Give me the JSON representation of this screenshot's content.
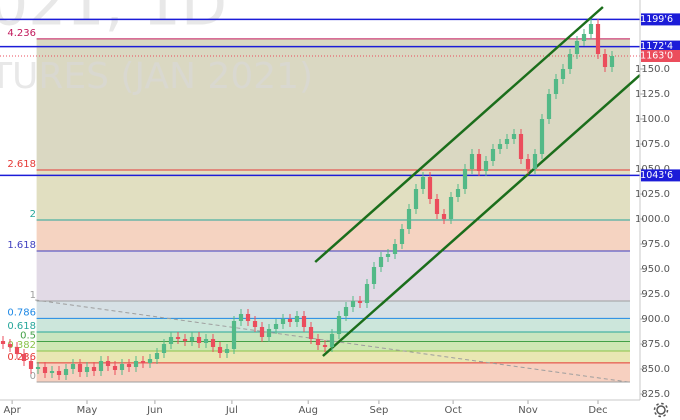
{
  "chart_data": {
    "type": "candlestick",
    "watermark": [
      "021, 1D",
      "TURES (JAN 2021)"
    ],
    "open": [
      878,
      875,
      872,
      865,
      858,
      850,
      852,
      846,
      848,
      844,
      850,
      855,
      847,
      852,
      848,
      858,
      853,
      849,
      855,
      852,
      858,
      856,
      860,
      866,
      875,
      882,
      880,
      878,
      882,
      876,
      880,
      872,
      866,
      870,
      898,
      905,
      898,
      892,
      882,
      890,
      895,
      900,
      897,
      903,
      892,
      880,
      874,
      872,
      885,
      903,
      912,
      918,
      916,
      935,
      952,
      962,
      965,
      975,
      990,
      1010,
      1030,
      1042,
      1020,
      1005,
      1000,
      1022,
      1030,
      1050,
      1065,
      1048,
      1058,
      1070,
      1075,
      1080,
      1085,
      1060,
      1050,
      1065,
      1100,
      1125,
      1140,
      1150,
      1165,
      1178,
      1185,
      1195,
      1165,
      1152
    ],
    "high": [
      883,
      880,
      877,
      870,
      863,
      857,
      857,
      853,
      853,
      855,
      860,
      860,
      857,
      857,
      863,
      863,
      858,
      860,
      860,
      863,
      863,
      865,
      871,
      880,
      887,
      887,
      885,
      887,
      887,
      885,
      885,
      877,
      875,
      903,
      910,
      910,
      903,
      897,
      895,
      900,
      905,
      905,
      908,
      908,
      897,
      885,
      879,
      890,
      908,
      917,
      923,
      923,
      940,
      957,
      967,
      970,
      980,
      995,
      1015,
      1035,
      1047,
      1047,
      1025,
      1010,
      1027,
      1035,
      1055,
      1070,
      1070,
      1063,
      1075,
      1080,
      1085,
      1090,
      1090,
      1065,
      1070,
      1105,
      1130,
      1145,
      1155,
      1170,
      1183,
      1190,
      1200,
      1200,
      1170,
      1168
    ],
    "low": [
      870,
      867,
      860,
      853,
      845,
      845,
      841,
      841,
      839,
      839,
      845,
      842,
      842,
      843,
      843,
      848,
      844,
      844,
      847,
      847,
      851,
      851,
      855,
      861,
      870,
      875,
      873,
      873,
      871,
      871,
      867,
      861,
      861,
      865,
      893,
      893,
      887,
      877,
      877,
      885,
      890,
      892,
      892,
      887,
      875,
      869,
      867,
      867,
      880,
      898,
      907,
      911,
      911,
      930,
      947,
      957,
      960,
      970,
      985,
      1005,
      1025,
      1015,
      1000,
      995,
      995,
      1017,
      1025,
      1045,
      1043,
      1043,
      1053,
      1065,
      1070,
      1075,
      1055,
      1045,
      1045,
      1060,
      1095,
      1120,
      1135,
      1145,
      1160,
      1173,
      1180,
      1160,
      1147,
      1147
    ],
    "close": [
      875,
      872,
      865,
      858,
      850,
      852,
      846,
      848,
      844,
      850,
      855,
      847,
      852,
      848,
      858,
      853,
      849,
      855,
      852,
      858,
      856,
      860,
      866,
      875,
      882,
      880,
      878,
      882,
      876,
      880,
      872,
      866,
      870,
      898,
      905,
      898,
      892,
      882,
      890,
      895,
      900,
      897,
      903,
      892,
      880,
      874,
      872,
      885,
      903,
      912,
      918,
      916,
      935,
      952,
      962,
      965,
      975,
      990,
      1010,
      1030,
      1042,
      1020,
      1005,
      1000,
      1022,
      1030,
      1050,
      1065,
      1048,
      1058,
      1070,
      1075,
      1080,
      1085,
      1060,
      1050,
      1065,
      1100,
      1125,
      1140,
      1150,
      1165,
      1178,
      1185,
      1195,
      1165,
      1152,
      1163
    ],
    "up_color": "#53b987",
    "down_color": "#eb4d5c",
    "xlim": [
      -0.43,
      91
    ],
    "xticks": [
      {
        "value": 1.3,
        "label": "Apr"
      },
      {
        "value": 12,
        "label": "May"
      },
      {
        "value": 21.7,
        "label": "Jun"
      },
      {
        "value": 32.7,
        "label": "Jul"
      },
      {
        "value": 43.6,
        "label": "Aug"
      },
      {
        "value": 53.7,
        "label": "Sep"
      },
      {
        "value": 64.3,
        "label": "Oct"
      },
      {
        "value": 75,
        "label": "Nov"
      },
      {
        "value": 85,
        "label": "Dec"
      }
    ],
    "ylim": [
      819,
      1219
    ],
    "yticks": [
      {
        "value": 825,
        "label": "825.0"
      },
      {
        "value": 850,
        "label": "850.0"
      },
      {
        "value": 875,
        "label": "875.0"
      },
      {
        "value": 900,
        "label": "900.0"
      },
      {
        "value": 925,
        "label": "925.0"
      },
      {
        "value": 950,
        "label": "950.0"
      },
      {
        "value": 975,
        "label": "975.0"
      },
      {
        "value": 1000,
        "label": "1000.0"
      },
      {
        "value": 1025,
        "label": "1025.0"
      },
      {
        "value": 1050,
        "label": "1050.0"
      },
      {
        "value": 1075,
        "label": "1075.0"
      },
      {
        "value": 1100,
        "label": "1100.0"
      },
      {
        "value": 1125,
        "label": "1125.0"
      },
      {
        "value": 1150,
        "label": "1150.0"
      }
    ],
    "fib_from": 837,
    "fib_to": 918,
    "fib_start": 4.8,
    "fib_levels": [
      {
        "ratio": 0,
        "label": "0",
        "color": "#9e9e9e",
        "fill": "#f6c8b5"
      },
      {
        "ratio": 0.236,
        "label": "0.236",
        "color": "#e53935",
        "fill": "#e5e3a6"
      },
      {
        "ratio": 0.382,
        "label": "0.382",
        "color": "#8bc34a",
        "fill": "#c7e3a7"
      },
      {
        "ratio": 0.5,
        "label": "0.5",
        "color": "#43a047",
        "fill": "#bfe0b4"
      },
      {
        "ratio": 0.618,
        "label": "0.618",
        "color": "#26a69a",
        "fill": "#c3e2d5"
      },
      {
        "ratio": 0.786,
        "label": "0.786",
        "color": "#1e88e5",
        "fill": "#cfdbe0"
      },
      {
        "ratio": 1,
        "label": "1",
        "color": "#9e9e9e",
        "fill": "#ddd3e2"
      },
      {
        "ratio": 1.618,
        "label": "1.618",
        "color": "#3f3fbf",
        "fill": "#f3cbb6"
      },
      {
        "ratio": 2,
        "label": "2",
        "color": "#26a69a",
        "fill": "#dcd9b6"
      },
      {
        "ratio": 2.618,
        "label": "2.618",
        "color": "#e53935",
        "fill": "#d3d1b7"
      },
      {
        "ratio": 4.236,
        "label": "4.236",
        "color": "#c2185b",
        "fill": null
      }
    ],
    "price_lines": [
      {
        "value": 1199.6,
        "label": "1199'6",
        "color": "#1c1cd8",
        "style": "solid"
      },
      {
        "value": 1172.4,
        "label": "1172'4",
        "color": "#1c1cd8",
        "style": "solid"
      },
      {
        "value": 1163.0,
        "label": "1163'0",
        "color": "#eb4d5c",
        "style": "dotted"
      },
      {
        "value": 1043.6,
        "label": "1043'6",
        "color": "#1c1cd8",
        "style": "solid"
      }
    ],
    "trendlines": [
      {
        "x": [
          44.6,
          85.7
        ],
        "y": [
          957,
          1212
        ],
        "color": "#1b6e1b",
        "style": "solid"
      },
      {
        "x": [
          45.7,
          91
        ],
        "y": [
          863,
          1144
        ],
        "color": "#1b6e1b",
        "style": "solid"
      },
      {
        "x": [
          4.6,
          89.3
        ],
        "y": [
          919,
          837
        ],
        "color": "#9e9e9e",
        "style": "dashed"
      }
    ]
  }
}
